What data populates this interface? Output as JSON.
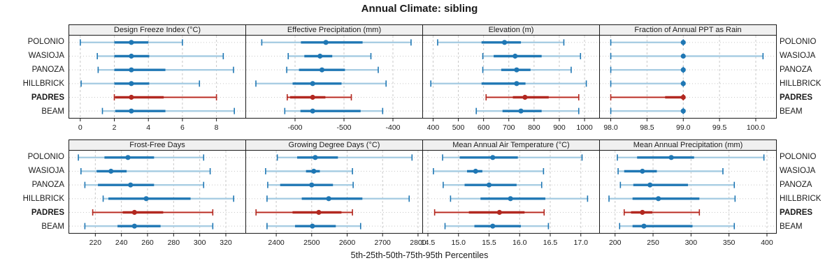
{
  "title": "Annual Climate: sibling",
  "footer": "5th-25th-50th-75th-95th Percentiles",
  "colors": {
    "blue": "#1f77b4",
    "blue_light": "#a8cde3",
    "red": "#b22820",
    "red_light": "#efa099",
    "grid": "#c8c8c8",
    "guide": "#c8c8c8",
    "header_bg": "#f0f0f0",
    "border": "#1a1a1a"
  },
  "chart_data": {
    "type": "dot-whisker-percentiles",
    "percentiles": [
      "5th",
      "25th",
      "50th",
      "75th",
      "95th"
    ],
    "categories": [
      "POLONIO",
      "WASIOJA",
      "PANOZA",
      "HILLBRICK",
      "PADRES",
      "BEAM"
    ],
    "highlight_category": "PADRES",
    "legend_position": "none",
    "grid": "dashed-vertical-and-dotted-row-guides",
    "panels": [
      {
        "title": "Design Freeze Index (°C)",
        "row": 0,
        "col": 0,
        "xlim": [
          -0.65,
          9.7
        ],
        "ticks": [
          0,
          2,
          4,
          6,
          8
        ],
        "tick_labels": [
          "0",
          "2",
          "4",
          "6",
          "8"
        ],
        "values": [
          [
            0,
            2,
            3,
            4,
            6
          ],
          [
            1,
            2,
            3,
            4.05,
            8.4
          ],
          [
            1.05,
            2,
            3,
            5,
            9
          ],
          [
            0.05,
            2,
            3,
            4.05,
            7
          ],
          [
            2,
            2.05,
            3,
            4.9,
            8
          ],
          [
            1.3,
            2.05,
            3,
            5,
            9.05
          ]
        ]
      },
      {
        "title": "Effective Precipitation (mm)",
        "row": 0,
        "col": 1,
        "xlim": [
          -700,
          -340
        ],
        "ticks": [
          -600,
          -500,
          -400
        ],
        "tick_labels": [
          "-600",
          "-500",
          "-400"
        ],
        "values": [
          [
            -668,
            -588,
            -537,
            -462,
            -363
          ],
          [
            -614,
            -581,
            -549,
            -524,
            -445
          ],
          [
            -617,
            -592,
            -545,
            -498,
            -430
          ],
          [
            -680,
            -605,
            -564,
            -505,
            -414
          ],
          [
            -616,
            -610,
            -564,
            -538,
            -485
          ],
          [
            -621,
            -589,
            -564,
            -466,
            -421
          ]
        ]
      },
      {
        "title": "Elevation (m)",
        "row": 0,
        "col": 2,
        "xlim": [
          360,
          1058
        ],
        "ticks": [
          400,
          500,
          600,
          700,
          800,
          900,
          1000
        ],
        "tick_labels": [
          "400",
          "500",
          "600",
          "700",
          "800",
          "900",
          "1000"
        ],
        "values": [
          [
            418,
            592,
            683,
            748,
            918
          ],
          [
            597,
            640,
            725,
            830,
            984
          ],
          [
            597,
            670,
            731,
            786,
            947
          ],
          [
            391,
            592,
            731,
            766,
            1007
          ],
          [
            610,
            716,
            764,
            858,
            977
          ],
          [
            571,
            675,
            748,
            830,
            977
          ]
        ]
      },
      {
        "title": "Fraction of Annual PPT as Rain",
        "row": 0,
        "col": 3,
        "xlim": [
          97.85,
          100.28
        ],
        "ticks": [
          98.0,
          98.5,
          99.0,
          99.5,
          100.0
        ],
        "tick_labels": [
          "98.0",
          "98.5",
          "99.0",
          "99.5",
          "100.0"
        ],
        "values": [
          [
            98,
            99,
            99,
            99,
            99
          ],
          [
            98,
            99,
            99,
            99,
            100.1
          ],
          [
            98,
            99,
            99,
            99,
            99
          ],
          [
            98,
            99,
            99,
            99,
            99
          ],
          [
            98,
            98.75,
            99,
            99,
            99
          ],
          [
            98,
            99,
            99,
            99,
            99
          ]
        ]
      },
      {
        "title": "Frost-Free Days",
        "row": 1,
        "col": 0,
        "xlim": [
          200,
          335
        ],
        "ticks": [
          220,
          240,
          260,
          280,
          300,
          320
        ],
        "tick_labels": [
          "220",
          "240",
          "260",
          "280",
          "300",
          "320"
        ],
        "values": [
          [
            207,
            227,
            245,
            265,
            303
          ],
          [
            209,
            221,
            232,
            244,
            308
          ],
          [
            212,
            222,
            247,
            265,
            303
          ],
          [
            226,
            230,
            259,
            293,
            326
          ],
          [
            218,
            241,
            250,
            272,
            310
          ],
          [
            212,
            237,
            250,
            270,
            310
          ]
        ]
      },
      {
        "title": "Growing Degree Days (°C)",
        "row": 1,
        "col": 1,
        "xlim": [
          2315,
          2812
        ],
        "ticks": [
          2400,
          2500,
          2600,
          2700,
          2800
        ],
        "tick_labels": [
          "2400",
          "2500",
          "2600",
          "2700",
          "2800"
        ],
        "values": [
          [
            2403,
            2459,
            2510,
            2574,
            2783
          ],
          [
            2370,
            2484,
            2506,
            2523,
            2615
          ],
          [
            2376,
            2411,
            2500,
            2560,
            2617
          ],
          [
            2374,
            2472,
            2548,
            2643,
            2775
          ],
          [
            2343,
            2446,
            2520,
            2584,
            2615
          ],
          [
            2374,
            2453,
            2502,
            2568,
            2638
          ]
        ]
      },
      {
        "title": "Mean Annual Air Temperature (°C)",
        "row": 1,
        "col": 2,
        "xlim": [
          14.42,
          17.3
        ],
        "ticks": [
          14.5,
          15.0,
          15.5,
          16.0,
          16.5,
          17.0
        ],
        "tick_labels": [
          "14.5",
          "15.0",
          "15.5",
          "16.0",
          "16.5",
          "17.0"
        ],
        "values": [
          [
            14.74,
            15.02,
            15.56,
            15.97,
            17.02
          ],
          [
            14.59,
            15.14,
            15.28,
            15.39,
            16.39
          ],
          [
            14.75,
            15.1,
            15.5,
            15.95,
            16.36
          ],
          [
            14.87,
            15.36,
            15.85,
            16.42,
            17.11
          ],
          [
            14.61,
            15.17,
            15.67,
            16.08,
            16.4
          ],
          [
            14.78,
            15.26,
            15.56,
            16.02,
            16.47
          ]
        ]
      },
      {
        "title": "Mean Annual Precipitation (mm)",
        "row": 1,
        "col": 3,
        "xlim": [
          180,
          412
        ],
        "ticks": [
          200,
          250,
          300,
          350,
          400
        ],
        "tick_labels": [
          "200",
          "250",
          "300",
          "350",
          "400"
        ],
        "values": [
          [
            203,
            229,
            274,
            304,
            396
          ],
          [
            204,
            212,
            236,
            255,
            342
          ],
          [
            207,
            224,
            246,
            296,
            357
          ],
          [
            192,
            223,
            257,
            311,
            358
          ],
          [
            212,
            221,
            236,
            249,
            311
          ],
          [
            206,
            223,
            238,
            302,
            357
          ]
        ]
      }
    ]
  }
}
